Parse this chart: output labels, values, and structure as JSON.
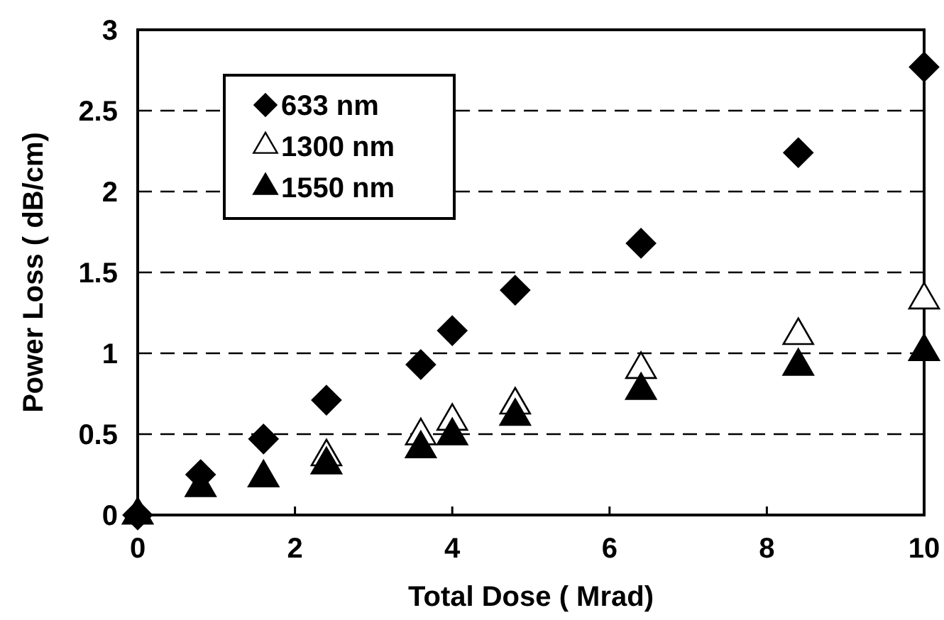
{
  "chart_data": {
    "type": "scatter",
    "xlabel": "Total Dose ( Mrad)",
    "ylabel": "Power Loss ( dB/cm)",
    "x": [
      0,
      0.8,
      1.6,
      2.4,
      3.6,
      4.0,
      4.8,
      6.4,
      8.4,
      10
    ],
    "series": [
      {
        "name": "633 nm",
        "color": "#000000",
        "marker": "diamond",
        "values": [
          0,
          0.25,
          0.47,
          0.71,
          0.93,
          1.14,
          1.39,
          1.68,
          2.24,
          2.77
        ]
      },
      {
        "name": "1300 nm",
        "color": "#ffffff",
        "marker": "triangle",
        "values": [
          null,
          null,
          null,
          0.36,
          0.49,
          0.58,
          0.68,
          0.9,
          1.11,
          1.33
        ]
      },
      {
        "name": "1550 nm",
        "color": "#000000",
        "marker": "triangle",
        "values": [
          0,
          0.17,
          0.23,
          0.31,
          0.41,
          0.49,
          0.61,
          0.77,
          0.92,
          1.01
        ]
      }
    ],
    "xlim": [
      0,
      10
    ],
    "xticks": [
      0,
      2,
      4,
      6,
      8,
      10
    ],
    "ylim": [
      0,
      3
    ],
    "yticks": [
      0,
      0.5,
      1,
      1.5,
      2,
      2.5,
      3
    ],
    "grid": "y",
    "line_style": "dashed",
    "legend": "top left"
  }
}
